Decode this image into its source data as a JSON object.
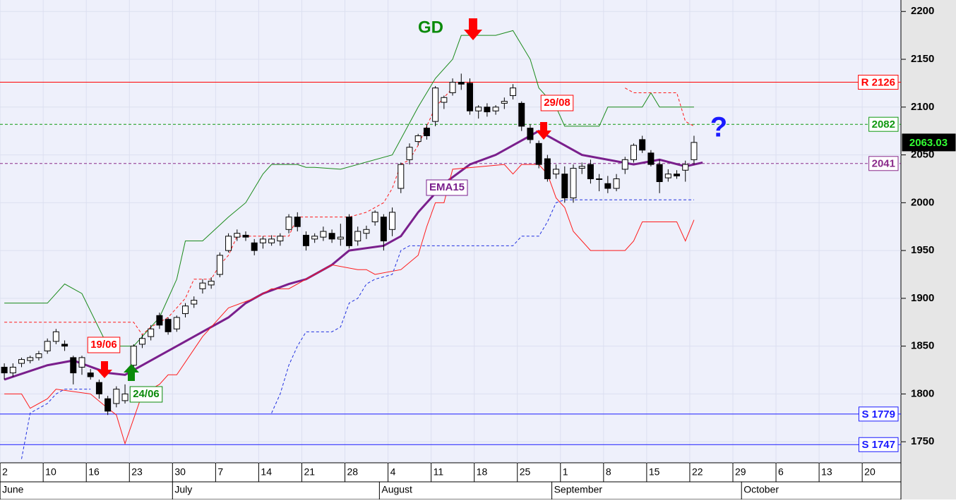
{
  "chart_data": {
    "type": "candlestick",
    "xlim": [
      -0.5,
      104
    ],
    "ylim": [
      1728,
      2212
    ],
    "yticks": [
      1750,
      1800,
      1850,
      1900,
      1950,
      2000,
      2050,
      2100,
      2150,
      2200
    ],
    "xticks": [
      {
        "value": 0,
        "label": "2"
      },
      {
        "value": 5,
        "label": "10"
      },
      {
        "value": 10,
        "label": "16"
      },
      {
        "value": 15,
        "label": "23"
      },
      {
        "value": 20,
        "label": "30"
      },
      {
        "value": 25,
        "label": "7"
      },
      {
        "value": 30,
        "label": "14"
      },
      {
        "value": 35,
        "label": "21"
      },
      {
        "value": 40,
        "label": "28"
      },
      {
        "value": 45,
        "label": "4"
      },
      {
        "value": 50,
        "label": "11"
      },
      {
        "value": 55,
        "label": "18"
      },
      {
        "value": 60,
        "label": "25"
      },
      {
        "value": 65,
        "label": "1"
      },
      {
        "value": 70,
        "label": "8"
      },
      {
        "value": 75,
        "label": "15"
      },
      {
        "value": 80,
        "label": "22"
      },
      {
        "value": 85,
        "label": "29"
      },
      {
        "value": 90,
        "label": "6"
      },
      {
        "value": 95,
        "label": "13"
      },
      {
        "value": 100,
        "label": "20"
      }
    ],
    "months": [
      {
        "value": 0,
        "label": "June"
      },
      {
        "value": 20,
        "label": "July"
      },
      {
        "value": 44,
        "label": "August"
      },
      {
        "value": 64,
        "label": "September"
      },
      {
        "value": 86,
        "label": "October"
      }
    ],
    "candles": {
      "x": [
        0,
        1,
        2,
        3,
        4,
        5,
        6,
        7,
        8,
        9,
        10,
        11,
        12,
        13,
        14,
        15,
        16,
        17,
        18,
        19,
        20,
        21,
        22,
        23,
        24,
        25,
        26,
        27,
        28,
        29,
        30,
        31,
        32,
        33,
        34,
        35,
        36,
        37,
        38,
        39,
        40,
        41,
        42,
        43,
        44,
        45,
        46,
        47,
        48,
        49,
        50,
        51,
        52,
        53,
        54,
        55,
        56,
        57,
        58,
        59,
        60,
        61,
        62,
        63,
        64,
        65,
        66,
        67,
        68,
        69,
        70,
        71,
        72,
        73,
        74,
        75,
        76,
        77,
        78,
        79,
        80
      ],
      "open": [
        1828,
        1822,
        1832,
        1835,
        1838,
        1845,
        1855,
        1852,
        1838,
        1828,
        1822,
        1812,
        1795,
        1790,
        1793,
        1830,
        1852,
        1860,
        1882,
        1878,
        1868,
        1884,
        1894,
        1910,
        1914,
        1925,
        1950,
        1964,
        1966,
        1958,
        1958,
        1958,
        1960,
        1972,
        1985,
        1966,
        1962,
        1964,
        1968,
        1962,
        1985,
        1960,
        1968,
        1980,
        1985,
        1972,
        2015,
        2045,
        2064,
        2078,
        2085,
        2105,
        2115,
        2126,
        2125,
        2096,
        2100,
        2096,
        2104,
        2112,
        2104,
        2078,
        2062,
        2046,
        2030,
        2030,
        2005,
        2036,
        2040,
        2025,
        2020,
        2015,
        2035,
        2045,
        2066,
        2052,
        2040,
        2026,
        2030,
        2034,
        2045
      ],
      "high": [
        1832,
        1832,
        1838,
        1840,
        1845,
        1858,
        1868,
        1856,
        1840,
        1840,
        1826,
        1815,
        1798,
        1808,
        1810,
        1852,
        1862,
        1872,
        1885,
        1880,
        1882,
        1895,
        1902,
        1920,
        1922,
        1948,
        1968,
        1972,
        1970,
        1962,
        1965,
        1966,
        1968,
        1988,
        1990,
        1970,
        1968,
        1975,
        1972,
        1978,
        1988,
        1975,
        1976,
        1992,
        1988,
        1995,
        2042,
        2062,
        2072,
        2082,
        2122,
        2112,
        2130,
        2135,
        2130,
        2102,
        2104,
        2102,
        2110,
        2124,
        2106,
        2082,
        2065,
        2050,
        2040,
        2038,
        2040,
        2042,
        2045,
        2030,
        2028,
        2030,
        2048,
        2062,
        2070,
        2055,
        2045,
        2035,
        2034,
        2044,
        2070
      ],
      "low": [
        1815,
        1818,
        1828,
        1832,
        1835,
        1842,
        1852,
        1845,
        1810,
        1820,
        1815,
        1795,
        1778,
        1786,
        1790,
        1828,
        1848,
        1856,
        1868,
        1862,
        1865,
        1880,
        1890,
        1905,
        1910,
        1922,
        1948,
        1960,
        1960,
        1945,
        1952,
        1955,
        1955,
        1968,
        1970,
        1950,
        1958,
        1960,
        1958,
        1955,
        1952,
        1955,
        1962,
        1976,
        1950,
        1965,
        2010,
        2040,
        2060,
        2066,
        2080,
        2098,
        2112,
        2118,
        2092,
        2088,
        2090,
        2092,
        2098,
        2108,
        2075,
        2062,
        2036,
        2022,
        2025,
        2000,
        2000,
        2030,
        2020,
        2012,
        2010,
        2012,
        2030,
        2042,
        2052,
        2038,
        2010,
        2022,
        2025,
        2022,
        2040
      ],
      "close": [
        1822,
        1828,
        1836,
        1838,
        1842,
        1855,
        1865,
        1850,
        1822,
        1838,
        1818,
        1800,
        1782,
        1805,
        1800,
        1850,
        1858,
        1868,
        1872,
        1865,
        1880,
        1892,
        1898,
        1916,
        1918,
        1945,
        1965,
        1968,
        1964,
        1950,
        1962,
        1962,
        1965,
        1985,
        1975,
        1955,
        1965,
        1970,
        1962,
        1964,
        1955,
        1970,
        1972,
        1990,
        1960,
        1990,
        2040,
        2058,
        2070,
        2070,
        2120,
        2110,
        2126,
        2124,
        2096,
        2100,
        2095,
        2100,
        2106,
        2120,
        2080,
        2066,
        2040,
        2025,
        2035,
        2005,
        2036,
        2038,
        2025,
        2025,
        2015,
        2025,
        2045,
        2060,
        2055,
        2040,
        2022,
        2030,
        2028,
        2040,
        2063.03
      ]
    },
    "lines": [
      {
        "color": "#7a1f8c",
        "width": 3,
        "dash": "none",
        "x": [
          0,
          5,
          8,
          12,
          14,
          18,
          22,
          26,
          28,
          30,
          33,
          35,
          38,
          40,
          44,
          46,
          48,
          51,
          54,
          57,
          60,
          62,
          64,
          67,
          70,
          73,
          76,
          79,
          81
        ],
        "values": [
          1815,
          1830,
          1835,
          1822,
          1820,
          1840,
          1860,
          1880,
          1895,
          1905,
          1915,
          1920,
          1935,
          1950,
          1955,
          1965,
          1990,
          2020,
          2040,
          2050,
          2065,
          2075,
          2065,
          2050,
          2045,
          2040,
          2045,
          2038,
          2042
        ]
      },
      {
        "color": "#1a8a1a",
        "width": 1,
        "dash": "none",
        "x": [
          0,
          5,
          7,
          9,
          12,
          15,
          18,
          19,
          20,
          21,
          23,
          26,
          28,
          30,
          31,
          34,
          35,
          36,
          39,
          45,
          48,
          50,
          52,
          53,
          57,
          59,
          61,
          62,
          64,
          65,
          69,
          70,
          74,
          75,
          76,
          80
        ],
        "values": [
          1895,
          1895,
          1915,
          1905,
          1850,
          1850,
          1880,
          1900,
          1920,
          1960,
          1960,
          1985,
          2000,
          2030,
          2040,
          2040,
          2037,
          2037,
          2035,
          2050,
          2100,
          2130,
          2150,
          2175,
          2175,
          2180,
          2150,
          2120,
          2100,
          2080,
          2080,
          2100,
          2100,
          2115,
          2100,
          2100
        ]
      },
      {
        "color": "#ff1a1a",
        "width": 1,
        "dash": "none",
        "x": [
          0,
          2,
          3,
          5,
          6,
          10,
          12,
          13,
          14,
          16,
          18,
          19,
          20,
          23,
          24,
          26,
          29,
          31,
          33,
          36,
          38,
          41,
          42,
          43,
          46,
          48,
          49,
          50,
          51,
          52,
          58,
          59,
          60,
          62,
          63,
          64,
          65,
          66,
          68,
          72,
          73,
          74,
          78,
          79,
          80
        ],
        "values": [
          1800,
          1800,
          1785,
          1795,
          1805,
          1800,
          1785,
          1778,
          1748,
          1800,
          1810,
          1820,
          1820,
          1860,
          1870,
          1890,
          1900,
          1910,
          1910,
          1925,
          1935,
          1930,
          1930,
          1925,
          1930,
          1945,
          1975,
          2000,
          2000,
          2035,
          2040,
          2030,
          2040,
          2040,
          2030,
          2005,
          1995,
          1970,
          1950,
          1950,
          1960,
          1980,
          1980,
          1960,
          1982
        ]
      },
      {
        "color": "#ff1a1a",
        "width": 1,
        "dash": "4,3",
        "x": [
          0,
          15,
          16,
          17,
          19,
          21,
          22,
          24,
          25,
          26,
          27,
          33,
          34,
          40,
          42,
          43,
          44,
          45,
          46,
          47,
          48,
          49,
          50,
          51,
          52,
          null,
          72,
          73,
          78,
          79,
          80
        ],
        "values": [
          1875,
          1875,
          1862,
          1870,
          1880,
          1900,
          1920,
          1920,
          1935,
          1945,
          1965,
          1965,
          1985,
          1985,
          1990,
          1995,
          2000,
          2015,
          2040,
          2045,
          2060,
          2080,
          2100,
          2110,
          2120,
          null,
          2120,
          2115,
          2115,
          2085,
          2080
        ]
      },
      {
        "color": "#2030e0",
        "width": 1,
        "dash": "4,3",
        "x": [
          2,
          3,
          5,
          6,
          7,
          10,
          null,
          31,
          32,
          33,
          34,
          35,
          38,
          39,
          40,
          41,
          42,
          43,
          45,
          46,
          47,
          59,
          60,
          62,
          63,
          64,
          65,
          80
        ],
        "values": [
          1732,
          1780,
          1790,
          1800,
          1805,
          1805,
          null,
          1780,
          1800,
          1830,
          1850,
          1865,
          1865,
          1870,
          1895,
          1900,
          1915,
          1920,
          1925,
          1950,
          1955,
          1955,
          1965,
          1965,
          1980,
          2000,
          2003,
          2003
        ]
      }
    ],
    "levels": [
      {
        "value": 2126,
        "label": "R 2126",
        "color": "#ff0000",
        "dash": "none"
      },
      {
        "value": 2082,
        "label": "2082",
        "color": "#119911",
        "dash": "4,3"
      },
      {
        "value": 2041,
        "label": "2041",
        "color": "#8a2a8a",
        "dash": "4,3"
      },
      {
        "value": 1779,
        "label": "S 1779",
        "color": "#1a1aff",
        "dash": "none"
      },
      {
        "value": 1747,
        "label": "S 1747",
        "color": "#1a1aff",
        "dash": "none"
      }
    ],
    "last_price": {
      "value": 2063.03,
      "label": "2063.03"
    },
    "annotations": [
      "GD",
      "19/06",
      "24/06",
      "29/08",
      "EMA15",
      "?"
    ]
  }
}
